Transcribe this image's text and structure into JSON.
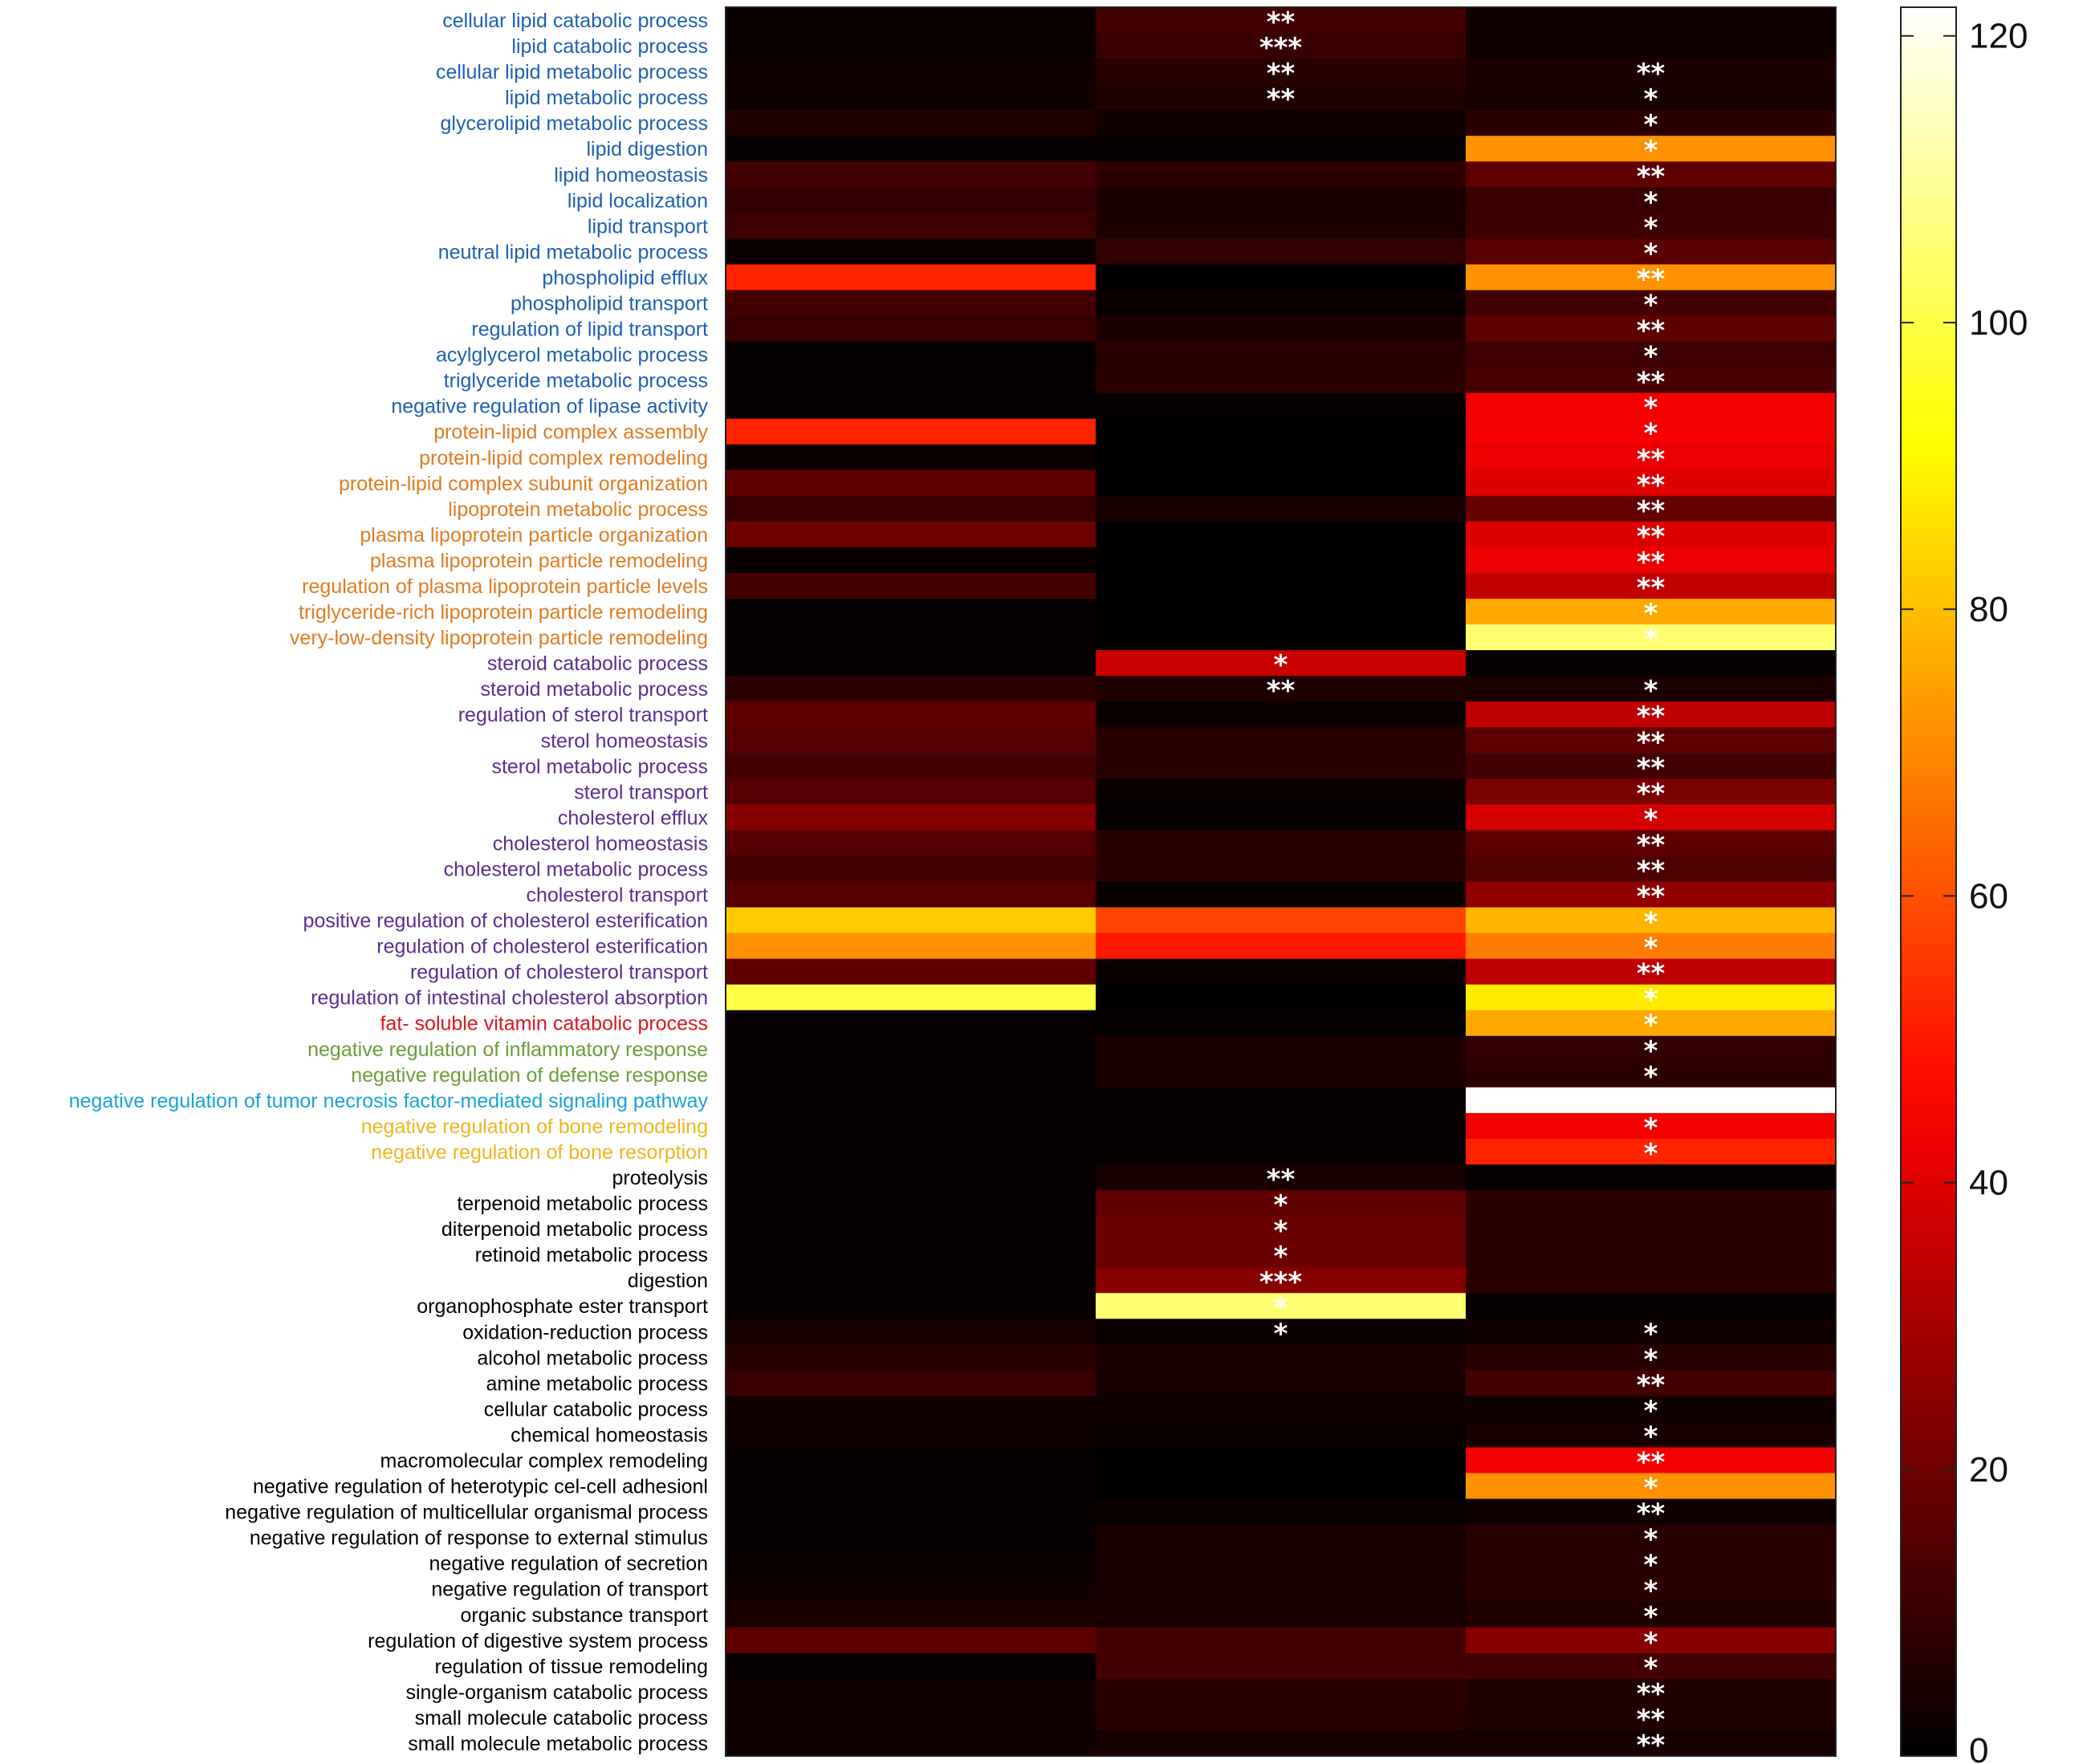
{
  "chart_data": {
    "type": "heatmap",
    "title": "",
    "xlabel": "",
    "ylabel": "",
    "colorbar": {
      "colormap": "hot",
      "range": [
        0,
        122
      ],
      "ticks": [
        0,
        20,
        40,
        60,
        80,
        100,
        120
      ],
      "tick_labels": [
        "0",
        "20",
        "40",
        "60",
        "80",
        "100",
        "120"
      ]
    },
    "columns": 3,
    "category_colors": {
      "lipid": "#1f5fb3",
      "lipoprotein": "#e07b24",
      "sterol": "#5b2d91",
      "vitamin": "#d8181f",
      "inflammation": "#6a9e3a",
      "tnf": "#1aa3d9",
      "bone": "#f0b51c",
      "other": "#000000"
    },
    "rows": [
      {
        "label": "cellular lipid catabolic process",
        "group": "lipid",
        "values": [
          2,
          12,
          3
        ],
        "stars": [
          "",
          "**",
          ""
        ]
      },
      {
        "label": "lipid catabolic process",
        "group": "lipid",
        "values": [
          2,
          10,
          3
        ],
        "stars": [
          "",
          "***",
          ""
        ]
      },
      {
        "label": "cellular lipid metabolic process",
        "group": "lipid",
        "values": [
          3,
          7,
          5
        ],
        "stars": [
          "",
          "**",
          "**"
        ]
      },
      {
        "label": "lipid metabolic process",
        "group": "lipid",
        "values": [
          3,
          6,
          4
        ],
        "stars": [
          "",
          "**",
          "*"
        ]
      },
      {
        "label": "glycerolipid metabolic process",
        "group": "lipid",
        "values": [
          6,
          3,
          8
        ],
        "stars": [
          "",
          "",
          "*"
        ]
      },
      {
        "label": "lipid digestion",
        "group": "lipid",
        "values": [
          1,
          1,
          72
        ],
        "stars": [
          "",
          "",
          "*"
        ]
      },
      {
        "label": "lipid homeostasis",
        "group": "lipid",
        "values": [
          12,
          8,
          17
        ],
        "stars": [
          "",
          "",
          "**"
        ]
      },
      {
        "label": "lipid localization",
        "group": "lipid",
        "values": [
          9,
          5,
          10
        ],
        "stars": [
          "",
          "",
          "*"
        ]
      },
      {
        "label": "lipid transport",
        "group": "lipid",
        "values": [
          11,
          5,
          11
        ],
        "stars": [
          "",
          "",
          "*"
        ]
      },
      {
        "label": "neutral lipid metabolic process",
        "group": "lipid",
        "values": [
          2,
          9,
          16
        ],
        "stars": [
          "",
          "",
          "*"
        ]
      },
      {
        "label": "phospholipid efflux",
        "group": "lipid",
        "values": [
          52,
          0,
          72
        ],
        "stars": [
          "",
          "",
          "**"
        ]
      },
      {
        "label": "phospholipid transport",
        "group": "lipid",
        "values": [
          12,
          2,
          12
        ],
        "stars": [
          "",
          "",
          "*"
        ]
      },
      {
        "label": "regulation of lipid transport",
        "group": "lipid",
        "values": [
          10,
          5,
          17
        ],
        "stars": [
          "",
          "",
          "**"
        ]
      },
      {
        "label": "acylglycerol metabolic process",
        "group": "lipid",
        "values": [
          1,
          7,
          11
        ],
        "stars": [
          "",
          "",
          "*"
        ]
      },
      {
        "label": "triglyceride metabolic process",
        "group": "lipid",
        "values": [
          1,
          8,
          13
        ],
        "stars": [
          "",
          "",
          "**"
        ]
      },
      {
        "label": "negative regulation of lipase activity",
        "group": "lipid",
        "values": [
          1,
          1,
          44
        ],
        "stars": [
          "",
          "",
          "*"
        ]
      },
      {
        "label": "protein-lipid complex assembly",
        "group": "lipoprotein",
        "values": [
          52,
          0,
          44
        ],
        "stars": [
          "",
          "",
          "*"
        ]
      },
      {
        "label": "protein-lipid complex remodeling",
        "group": "lipoprotein",
        "values": [
          2,
          0,
          42
        ],
        "stars": [
          "",
          "",
          "**"
        ]
      },
      {
        "label": "protein-lipid complex subunit organization",
        "group": "lipoprotein",
        "values": [
          17,
          0,
          40
        ],
        "stars": [
          "",
          "",
          "**"
        ]
      },
      {
        "label": "lipoprotein metabolic process",
        "group": "lipoprotein",
        "values": [
          10,
          4,
          18
        ],
        "stars": [
          "",
          "",
          "**"
        ]
      },
      {
        "label": "plasma lipoprotein particle organization",
        "group": "lipoprotein",
        "values": [
          20,
          0,
          40
        ],
        "stars": [
          "",
          "",
          "**"
        ]
      },
      {
        "label": "plasma lipoprotein particle remodeling",
        "group": "lipoprotein",
        "values": [
          2,
          0,
          42
        ],
        "stars": [
          "",
          "",
          "**"
        ]
      },
      {
        "label": "regulation of plasma lipoprotein particle levels",
        "group": "lipoprotein",
        "values": [
          12,
          0,
          35
        ],
        "stars": [
          "",
          "",
          "**"
        ]
      },
      {
        "label": "triglyceride-rich lipoprotein particle remodeling",
        "group": "lipoprotein",
        "values": [
          1,
          0,
          76
        ],
        "stars": [
          "",
          "",
          "*"
        ]
      },
      {
        "label": "very-low-density lipoprotein particle remodeling",
        "group": "lipoprotein",
        "values": [
          1,
          0,
          105
        ],
        "stars": [
          "",
          "",
          "*"
        ]
      },
      {
        "label": "steroid catabolic process",
        "group": "sterol",
        "values": [
          1,
          36,
          1
        ],
        "stars": [
          "",
          "*",
          ""
        ]
      },
      {
        "label": "steroid metabolic process",
        "group": "sterol",
        "values": [
          8,
          6,
          5
        ],
        "stars": [
          "",
          "**",
          "*"
        ]
      },
      {
        "label": "regulation of sterol transport",
        "group": "sterol",
        "values": [
          17,
          2,
          34
        ],
        "stars": [
          "",
          "",
          "**"
        ]
      },
      {
        "label": "sterol homeostasis",
        "group": "sterol",
        "values": [
          15,
          7,
          17
        ],
        "stars": [
          "",
          "",
          "**"
        ]
      },
      {
        "label": "sterol metabolic process",
        "group": "sterol",
        "values": [
          12,
          7,
          12
        ],
        "stars": [
          "",
          "",
          "**"
        ]
      },
      {
        "label": "sterol transport",
        "group": "sterol",
        "values": [
          15,
          2,
          22
        ],
        "stars": [
          "",
          "",
          "**"
        ]
      },
      {
        "label": "cholesterol efflux",
        "group": "sterol",
        "values": [
          24,
          1,
          38
        ],
        "stars": [
          "",
          "",
          "*"
        ]
      },
      {
        "label": "cholesterol homeostasis",
        "group": "sterol",
        "values": [
          15,
          7,
          17
        ],
        "stars": [
          "",
          "",
          "**"
        ]
      },
      {
        "label": "cholesterol metabolic process",
        "group": "sterol",
        "values": [
          12,
          7,
          14
        ],
        "stars": [
          "",
          "",
          "**"
        ]
      },
      {
        "label": "cholesterol transport",
        "group": "sterol",
        "values": [
          15,
          2,
          26
        ],
        "stars": [
          "",
          "",
          "**"
        ]
      },
      {
        "label": "positive regulation of cholesterol esterification",
        "group": "sterol",
        "values": [
          82,
          58,
          78
        ],
        "stars": [
          "",
          "",
          "*"
        ]
      },
      {
        "label": "regulation of cholesterol esterification",
        "group": "sterol",
        "values": [
          72,
          50,
          68
        ],
        "stars": [
          "",
          "",
          "*"
        ]
      },
      {
        "label": "regulation of cholesterol transport",
        "group": "sterol",
        "values": [
          17,
          2,
          34
        ],
        "stars": [
          "",
          "",
          "**"
        ]
      },
      {
        "label": "regulation of intestinal cholesterol absorption",
        "group": "sterol",
        "values": [
          100,
          0,
          88
        ],
        "stars": [
          "",
          "",
          "*"
        ]
      },
      {
        "label": "fat- soluble vitamin catabolic process",
        "group": "vitamin",
        "values": [
          1,
          1,
          76
        ],
        "stars": [
          "",
          "",
          "*"
        ]
      },
      {
        "label": "negative regulation of inflammatory response",
        "group": "inflammation",
        "values": [
          1,
          5,
          9
        ],
        "stars": [
          "",
          "",
          "*"
        ]
      },
      {
        "label": "negative regulation of defense response",
        "group": "inflammation",
        "values": [
          1,
          5,
          8
        ],
        "stars": [
          "",
          "",
          "*"
        ]
      },
      {
        "label": "negative regulation of tumor necrosis factor-mediated signaling pathway",
        "group": "tnf",
        "values": [
          1,
          1,
          122
        ],
        "stars": [
          "",
          "",
          ""
        ]
      },
      {
        "label": "negative regulation of bone remodeling",
        "group": "bone",
        "values": [
          1,
          1,
          44
        ],
        "stars": [
          "",
          "",
          "*"
        ]
      },
      {
        "label": "negative regulation of bone resorption",
        "group": "bone",
        "values": [
          1,
          1,
          52
        ],
        "stars": [
          "",
          "",
          "*"
        ]
      },
      {
        "label": "proteolysis",
        "group": "other",
        "values": [
          1,
          4,
          1
        ],
        "stars": [
          "",
          "**",
          ""
        ]
      },
      {
        "label": "terpenoid metabolic process",
        "group": "other",
        "values": [
          1,
          17,
          8
        ],
        "stars": [
          "",
          "*",
          ""
        ]
      },
      {
        "label": "diterpenoid metabolic process",
        "group": "other",
        "values": [
          1,
          19,
          7
        ],
        "stars": [
          "",
          "*",
          ""
        ]
      },
      {
        "label": "retinoid metabolic process",
        "group": "other",
        "values": [
          1,
          19,
          7
        ],
        "stars": [
          "",
          "*",
          ""
        ]
      },
      {
        "label": "digestion",
        "group": "other",
        "values": [
          1,
          24,
          8
        ],
        "stars": [
          "",
          "***",
          ""
        ]
      },
      {
        "label": "organophosphate ester transport",
        "group": "other",
        "values": [
          1,
          105,
          1
        ],
        "stars": [
          "",
          "*",
          ""
        ]
      },
      {
        "label": "oxidation-reduction process",
        "group": "other",
        "values": [
          4,
          2,
          3
        ],
        "stars": [
          "",
          "*",
          "*"
        ]
      },
      {
        "label": "alcohol metabolic process",
        "group": "other",
        "values": [
          7,
          5,
          7
        ],
        "stars": [
          "",
          "",
          "*"
        ]
      },
      {
        "label": "amine metabolic process",
        "group": "other",
        "values": [
          10,
          4,
          12
        ],
        "stars": [
          "",
          "",
          "**"
        ]
      },
      {
        "label": "cellular catabolic process",
        "group": "other",
        "values": [
          3,
          3,
          3
        ],
        "stars": [
          "",
          "",
          "*"
        ]
      },
      {
        "label": "chemical homeostasis",
        "group": "other",
        "values": [
          3,
          2,
          4
        ],
        "stars": [
          "",
          "",
          "*"
        ]
      },
      {
        "label": "macromolecular complex remodeling",
        "group": "other",
        "values": [
          1,
          0,
          44
        ],
        "stars": [
          "",
          "",
          "**"
        ]
      },
      {
        "label": "negative regulation of heterotypic cel-cell adhesionl",
        "group": "other",
        "values": [
          1,
          0,
          72
        ],
        "stars": [
          "",
          "",
          "*"
        ]
      },
      {
        "label": "negative regulation of multicellular organismal process",
        "group": "other",
        "values": [
          1,
          2,
          3
        ],
        "stars": [
          "",
          "",
          "**"
        ]
      },
      {
        "label": "negative regulation of response to external stimulus",
        "group": "other",
        "values": [
          1,
          5,
          7
        ],
        "stars": [
          "",
          "",
          "*"
        ]
      },
      {
        "label": "negative regulation of secretion",
        "group": "other",
        "values": [
          2,
          5,
          7
        ],
        "stars": [
          "",
          "",
          "*"
        ]
      },
      {
        "label": "negative regulation of transport",
        "group": "other",
        "values": [
          3,
          4,
          8
        ],
        "stars": [
          "",
          "",
          "*"
        ]
      },
      {
        "label": "organic substance transport",
        "group": "other",
        "values": [
          5,
          4,
          6
        ],
        "stars": [
          "",
          "",
          "*"
        ]
      },
      {
        "label": "regulation of digestive system process",
        "group": "other",
        "values": [
          17,
          12,
          24
        ],
        "stars": [
          "",
          "",
          "*"
        ]
      },
      {
        "label": "regulation of tissue remodeling",
        "group": "other",
        "values": [
          1,
          12,
          12
        ],
        "stars": [
          "",
          "",
          "*"
        ]
      },
      {
        "label": "single-organism catabolic process",
        "group": "other",
        "values": [
          3,
          8,
          6
        ],
        "stars": [
          "",
          "",
          "**"
        ]
      },
      {
        "label": "small molecule catabolic process",
        "group": "other",
        "values": [
          3,
          7,
          6
        ],
        "stars": [
          "",
          "",
          "**"
        ]
      },
      {
        "label": "small molecule metabolic process",
        "group": "other",
        "values": [
          3,
          4,
          4
        ],
        "stars": [
          "",
          "",
          "**"
        ]
      }
    ]
  }
}
